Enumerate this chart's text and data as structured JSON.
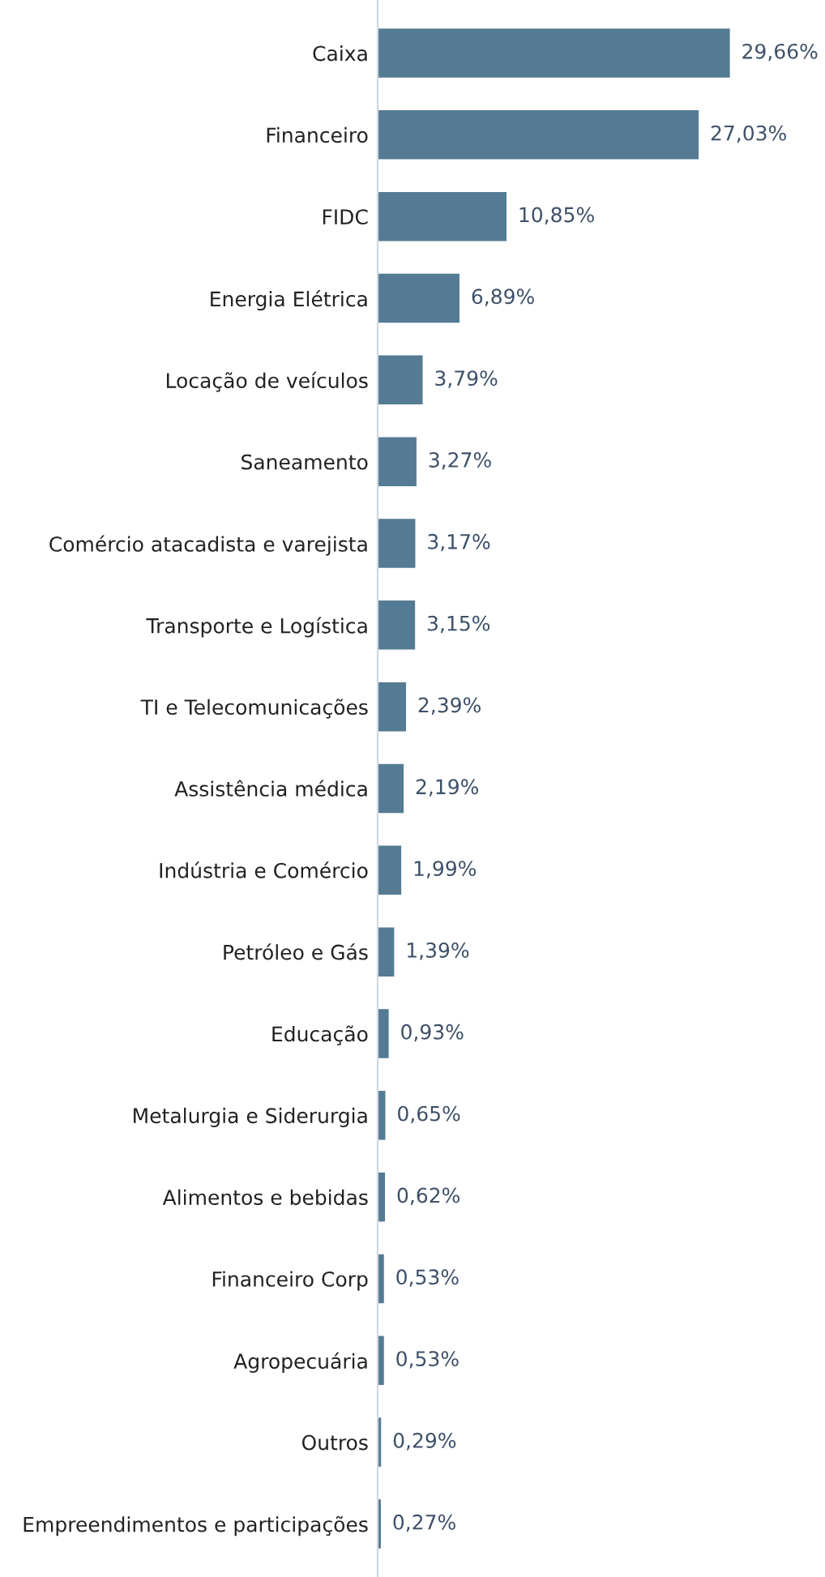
{
  "chart_data": {
    "type": "bar",
    "orientation": "horizontal",
    "categories": [
      "Caixa",
      "Financeiro",
      "FIDC",
      "Energia Elétrica",
      "Locação de veículos",
      "Saneamento",
      "Comércio atacadista e varejista",
      "Transporte e Logística",
      "TI e Telecomunicações",
      "Assistência médica",
      "Indústria e Comércio",
      "Petróleo e Gás",
      "Educação",
      "Metalurgia e Siderurgia",
      "Alimentos e bebidas",
      "Financeiro Corp",
      "Agropecuária",
      "Outros",
      "Empreendimentos e participações"
    ],
    "values": [
      29.66,
      27.03,
      10.85,
      6.89,
      3.79,
      3.27,
      3.17,
      3.15,
      2.39,
      2.19,
      1.99,
      1.39,
      0.93,
      0.65,
      0.62,
      0.53,
      0.53,
      0.29,
      0.27
    ],
    "value_labels": [
      "29,66%",
      "27,03%",
      "10,85%",
      "6,89%",
      "3,79%",
      "3,27%",
      "3,17%",
      "3,15%",
      "2,39%",
      "2,19%",
      "1,99%",
      "1,39%",
      "0,93%",
      "0,65%",
      "0,62%",
      "0,53%",
      "0,53%",
      "0,29%",
      "0,27%"
    ],
    "color": "#557b94",
    "grid": false,
    "legend": false
  }
}
